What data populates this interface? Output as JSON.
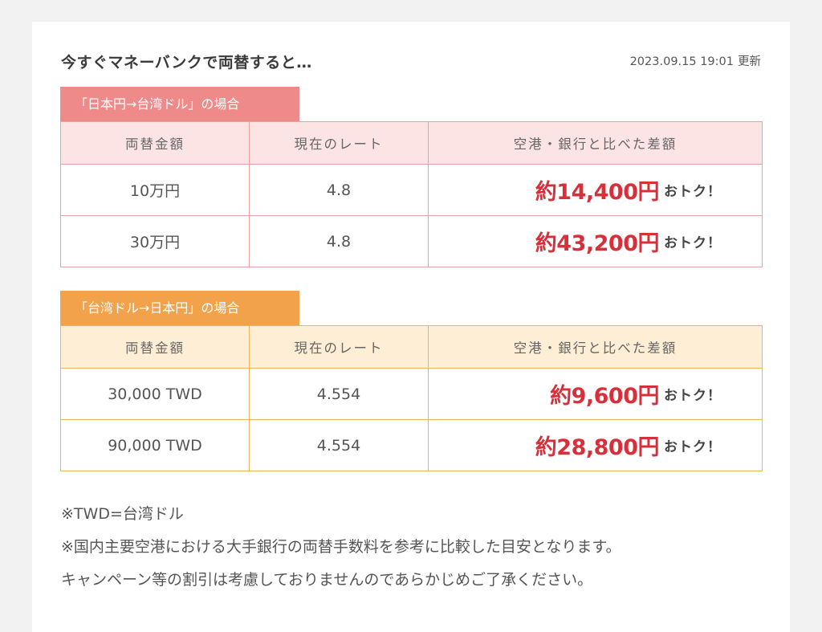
{
  "header": {
    "title": "今すぐマネーバンクで両替すると…",
    "updated_datetime": "2023.09.15 19:01",
    "updated_label": "更新"
  },
  "sections": [
    {
      "tab_label": "「日本円→台湾ドル」の場合",
      "columns": [
        "両替金額",
        "現在のレート",
        "空港・銀行と比べた差額"
      ],
      "rows": [
        {
          "amount": "10万円",
          "rate": "4.8",
          "saving": "約14,400円",
          "saving_suffix": "おトク！"
        },
        {
          "amount": "30万円",
          "rate": "4.8",
          "saving": "約43,200円",
          "saving_suffix": "おトク！"
        }
      ]
    },
    {
      "tab_label": "「台湾ドル→日本円」の場合",
      "columns": [
        "両替金額",
        "現在のレート",
        "空港・銀行と比べた差額"
      ],
      "rows": [
        {
          "amount": "30,000 TWD",
          "rate": "4.554",
          "saving": "約9,600円",
          "saving_suffix": "おトク！"
        },
        {
          "amount": "90,000 TWD",
          "rate": "4.554",
          "saving": "約28,800円",
          "saving_suffix": "おトク！"
        }
      ]
    }
  ],
  "notes": [
    "※TWD=台湾ドル",
    "※国内主要空港における大手銀行の両替手数料を参考に比較した目安となります。",
    "キャンペーン等の割引は考慮しておりませんのであらかじめご了承ください。"
  ],
  "colors": {
    "jpy_to_twd_accent": "#ee8a8a",
    "twd_to_jpy_accent": "#f2a24a",
    "saving_text": "#d8303a"
  }
}
